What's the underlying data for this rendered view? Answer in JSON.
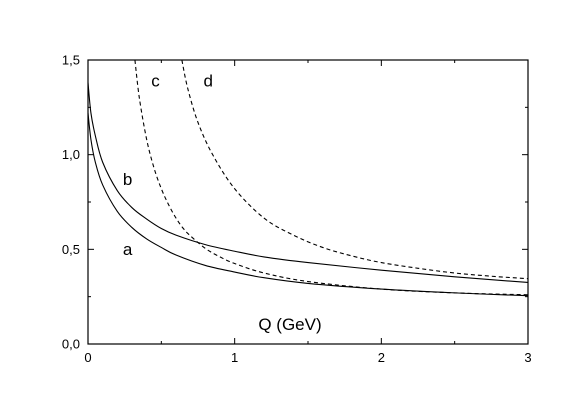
{
  "chart_data": {
    "type": "line",
    "title": "",
    "xlabel": "Q (GeV)",
    "ylabel": "",
    "xlim": [
      0,
      3
    ],
    "ylim": [
      0,
      1.5
    ],
    "x_ticks": [
      {
        "value": 0,
        "label": "0"
      },
      {
        "value": 1,
        "label": "1"
      },
      {
        "value": 2,
        "label": "2"
      },
      {
        "value": 3,
        "label": "3"
      }
    ],
    "y_ticks": [
      {
        "value": 0,
        "label": "0,0"
      },
      {
        "value": 0.5,
        "label": "0,5"
      },
      {
        "value": 1.0,
        "label": "1,0"
      },
      {
        "value": 1.5,
        "label": "1,5"
      }
    ],
    "grid": false,
    "series": [
      {
        "name": "a",
        "style": "solid",
        "x": [
          0,
          0.02,
          0.05,
          0.1,
          0.2,
          0.3,
          0.4,
          0.5,
          0.6,
          0.8,
          1.0,
          1.2,
          1.5,
          2.0,
          2.5,
          3.0
        ],
        "y": [
          1.22,
          1.08,
          0.96,
          0.84,
          0.7,
          0.615,
          0.555,
          0.51,
          0.47,
          0.415,
          0.38,
          0.35,
          0.32,
          0.29,
          0.27,
          0.255
        ]
      },
      {
        "name": "b",
        "style": "solid",
        "x": [
          0,
          0.02,
          0.05,
          0.1,
          0.2,
          0.3,
          0.4,
          0.5,
          0.6,
          0.8,
          1.0,
          1.2,
          1.5,
          2.0,
          2.5,
          3.0
        ],
        "y": [
          1.38,
          1.22,
          1.1,
          0.96,
          0.81,
          0.72,
          0.66,
          0.61,
          0.575,
          0.525,
          0.49,
          0.46,
          0.43,
          0.39,
          0.355,
          0.325
        ]
      },
      {
        "name": "c",
        "style": "dashed",
        "x": [
          0.32,
          0.35,
          0.4,
          0.45,
          0.5,
          0.55,
          0.6,
          0.65,
          0.7,
          0.8,
          0.9,
          1.0,
          1.2,
          1.5,
          2.0,
          2.5,
          3.0
        ],
        "y": [
          1.5,
          1.3,
          1.08,
          0.93,
          0.82,
          0.735,
          0.665,
          0.61,
          0.57,
          0.505,
          0.46,
          0.425,
          0.375,
          0.33,
          0.29,
          0.27,
          0.26
        ]
      },
      {
        "name": "d",
        "style": "dashed",
        "x": [
          0.64,
          0.68,
          0.75,
          0.85,
          1.0,
          1.2,
          1.4,
          1.6,
          1.8,
          2.0,
          2.25,
          2.5,
          2.75,
          3.0
        ],
        "y": [
          1.5,
          1.35,
          1.17,
          1.0,
          0.82,
          0.665,
          0.575,
          0.51,
          0.465,
          0.43,
          0.4,
          0.375,
          0.358,
          0.345
        ]
      }
    ],
    "annotations": [
      {
        "text": "a",
        "x": 0.27,
        "y": 0.47
      },
      {
        "text": "b",
        "x": 0.27,
        "y": 0.84
      },
      {
        "text": "c",
        "x": 0.46,
        "y": 1.36
      },
      {
        "text": "d",
        "x": 0.82,
        "y": 1.36
      }
    ]
  }
}
